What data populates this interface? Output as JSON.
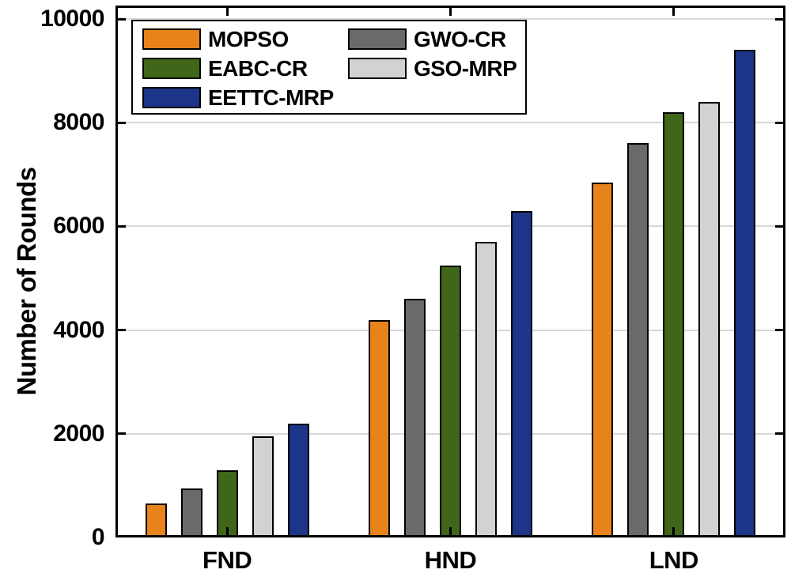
{
  "chart_data": {
    "type": "bar",
    "title": "",
    "xlabel": "",
    "ylabel": "Number of Rounds",
    "categories": [
      "FND",
      "HND",
      "LND"
    ],
    "series": [
      {
        "name": "MOPSO",
        "color": "#E8821A",
        "values": [
          650,
          4200,
          6850
        ]
      },
      {
        "name": "GWO-CR",
        "color": "#6A6A6A",
        "values": [
          950,
          4600,
          7600
        ]
      },
      {
        "name": "EABC-CR",
        "color": "#40661A",
        "values": [
          1300,
          5250,
          8200
        ]
      },
      {
        "name": "GSO-MRP",
        "color": "#D2D2D2",
        "values": [
          1950,
          5700,
          8400
        ]
      },
      {
        "name": "EETTC-MRP",
        "color": "#1C3588",
        "values": [
          2200,
          6300,
          9400
        ]
      }
    ],
    "yticks": [
      0,
      2000,
      4000,
      6000,
      8000,
      10000
    ],
    "ylim": [
      0,
      10260
    ],
    "grid": "horizontal",
    "gridline_color": "#D8D8D8",
    "legend_position": "top-left",
    "legend_columns": [
      [
        "MOPSO",
        "EABC-CR",
        "EETTC-MRP"
      ],
      [
        "GWO-CR",
        "GSO-MRP"
      ]
    ]
  }
}
